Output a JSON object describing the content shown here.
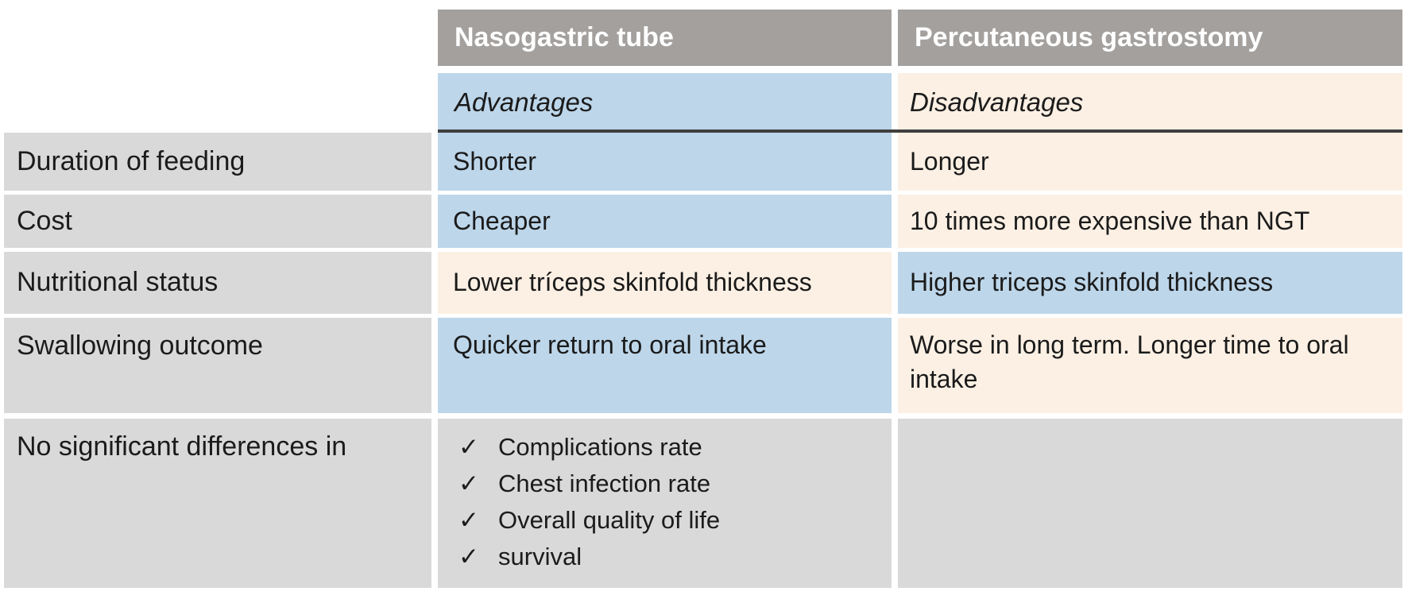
{
  "chart_data": {
    "type": "table",
    "title": "",
    "description": "Comparison table of Nasogastric tube vs Percutaneous gastrostomy feeding",
    "column_headers": {
      "label_col": "",
      "ngt": "Nasogastric tube",
      "peg": "Percutaneous gastrostomy"
    },
    "subheaders": {
      "ngt": "Advantages",
      "peg": "Disadvantages"
    },
    "rows": [
      {
        "label": "Duration of feeding",
        "ngt": "Shorter",
        "peg": "Longer",
        "ngt_highlight": "blue",
        "peg_highlight": "cream"
      },
      {
        "label": "Cost",
        "ngt": "Cheaper",
        "peg": "10 times more expensive than NGT",
        "ngt_highlight": "blue",
        "peg_highlight": "cream"
      },
      {
        "label": "Nutritional status",
        "ngt": "Lower tríceps skinfold thickness",
        "peg": "Higher triceps skinfold thickness",
        "ngt_highlight": "cream",
        "peg_highlight": "blue"
      },
      {
        "label": "Swallowing outcome",
        "ngt": "Quicker return to oral intake",
        "peg": "Worse in long term. Longer time to oral intake",
        "ngt_highlight": "blue",
        "peg_highlight": "cream"
      }
    ],
    "footer_row": {
      "label": "No significant differences in",
      "check_glyph": "✓",
      "items": [
        "Complications rate",
        "Chest infection rate",
        "Overall quality of life",
        "survival"
      ]
    },
    "layout_hints": {
      "legend_position": "none",
      "grid": "white gutters between cells",
      "divider": "dark horizontal rule under Advantages/Disadvantages spanning data columns"
    },
    "colors": {
      "header_bg": "#a3a09e",
      "header_text": "#ffffff",
      "label_bg": "#d9d9d9",
      "advantage_blue": "#bdd6ea",
      "disadvantage_cream": "#fcf0e4",
      "divider_dark": "#3f3f3f",
      "body_text": "#1b1b1b",
      "page_bg": "#ffffff"
    }
  }
}
